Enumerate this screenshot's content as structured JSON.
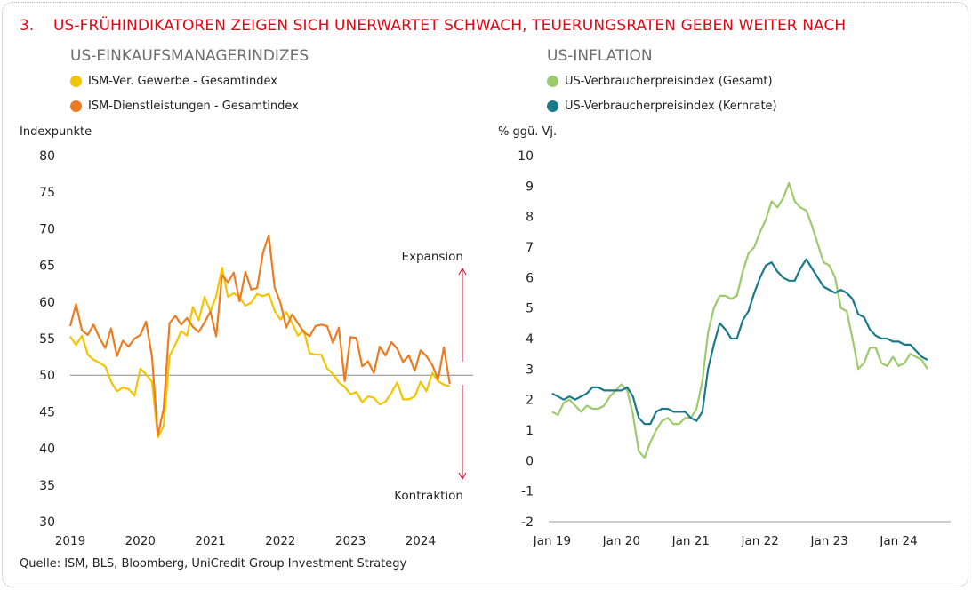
{
  "title": {
    "number": "3.",
    "text": "US-FRÜHINDIKATOREN ZEIGEN SICH UNERWARTET SCHWACH, TEUERUNGSRATEN GEBEN WEITER NACH"
  },
  "source": "Quelle: ISM, BLS, Bloomberg, UniCredit Group Investment Strategy",
  "colors": {
    "title": "#e30613",
    "yellow": "#f5c400",
    "orange": "#ec7c1f",
    "lightgreen": "#9ccb6b",
    "teal": "#1a7a8a",
    "arrow": "#c8102e"
  },
  "chart_data": [
    {
      "type": "line",
      "title": "US-EINKAUFSMANAGERINDIZES",
      "ylabel": "Indexpunkte",
      "xlabel": "",
      "ylim": [
        30,
        80
      ],
      "yticks": [
        30,
        35,
        40,
        45,
        50,
        55,
        60,
        65,
        70,
        75,
        80
      ],
      "xticks": [
        "2019",
        "2020",
        "2021",
        "2022",
        "2023",
        "2024"
      ],
      "xtick_dates": [
        2019.0,
        2020.0,
        2021.0,
        2022.0,
        2023.0,
        2024.0
      ],
      "reference_line": 50,
      "annotations": {
        "up": "Expansion",
        "down": "Kontraktion"
      },
      "legend_position": "top-left",
      "series": [
        {
          "name": "ISM-Ver. Gewerbe - Gesamtindex",
          "color": "#f5c400",
          "x": [
            2019.0,
            2019.083,
            2019.167,
            2019.25,
            2019.333,
            2019.417,
            2019.5,
            2019.583,
            2019.667,
            2019.75,
            2019.833,
            2019.917,
            2020.0,
            2020.083,
            2020.167,
            2020.25,
            2020.333,
            2020.417,
            2020.5,
            2020.583,
            2020.667,
            2020.75,
            2020.833,
            2020.917,
            2021.0,
            2021.083,
            2021.167,
            2021.25,
            2021.333,
            2021.417,
            2021.5,
            2021.583,
            2021.667,
            2021.75,
            2021.833,
            2021.917,
            2022.0,
            2022.083,
            2022.167,
            2022.25,
            2022.333,
            2022.417,
            2022.5,
            2022.583,
            2022.667,
            2022.75,
            2022.833,
            2022.917,
            2023.0,
            2023.083,
            2023.167,
            2023.25,
            2023.333,
            2023.417,
            2023.5,
            2023.583,
            2023.667,
            2023.75,
            2023.833,
            2023.917,
            2024.0,
            2024.083,
            2024.167,
            2024.25,
            2024.333,
            2024.417
          ],
          "values": [
            55.3,
            54.1,
            55.4,
            52.8,
            52.1,
            51.7,
            51.2,
            49.1,
            47.8,
            48.3,
            48.1,
            47.2,
            50.9,
            50.1,
            49.1,
            41.5,
            43.1,
            52.6,
            54.2,
            56.0,
            55.4,
            59.3,
            57.5,
            60.7,
            58.7,
            60.8,
            64.7,
            60.7,
            61.2,
            60.6,
            59.5,
            59.9,
            61.1,
            60.8,
            61.1,
            58.8,
            57.6,
            58.6,
            57.1,
            55.4,
            56.1,
            53.0,
            52.8,
            52.8,
            50.9,
            50.2,
            49.0,
            48.4,
            47.4,
            47.7,
            46.3,
            47.1,
            46.9,
            46.0,
            46.4,
            47.6,
            49.0,
            46.7,
            46.7,
            47.1,
            49.1,
            47.8,
            50.3,
            49.2,
            48.7,
            48.5
          ]
        },
        {
          "name": "ISM-Dienstleistungen - Gesamtindex",
          "color": "#ec7c1f",
          "x": [
            2019.0,
            2019.083,
            2019.167,
            2019.25,
            2019.333,
            2019.417,
            2019.5,
            2019.583,
            2019.667,
            2019.75,
            2019.833,
            2019.917,
            2020.0,
            2020.083,
            2020.167,
            2020.25,
            2020.333,
            2020.417,
            2020.5,
            2020.583,
            2020.667,
            2020.75,
            2020.833,
            2020.917,
            2021.0,
            2021.083,
            2021.167,
            2021.25,
            2021.333,
            2021.417,
            2021.5,
            2021.583,
            2021.667,
            2021.75,
            2021.833,
            2021.917,
            2022.0,
            2022.083,
            2022.167,
            2022.25,
            2022.333,
            2022.417,
            2022.5,
            2022.583,
            2022.667,
            2022.75,
            2022.833,
            2022.917,
            2023.0,
            2023.083,
            2023.167,
            2023.25,
            2023.333,
            2023.417,
            2023.5,
            2023.583,
            2023.667,
            2023.75,
            2023.833,
            2023.917,
            2024.0,
            2024.083,
            2024.167,
            2024.25,
            2024.333,
            2024.417
          ],
          "values": [
            56.7,
            59.7,
            56.1,
            55.5,
            56.9,
            55.1,
            53.7,
            56.4,
            52.6,
            54.7,
            53.9,
            55.0,
            55.5,
            57.3,
            52.5,
            41.8,
            45.4,
            57.1,
            58.1,
            56.9,
            57.8,
            56.6,
            55.9,
            57.2,
            58.7,
            55.3,
            63.7,
            62.7,
            64.0,
            60.1,
            64.1,
            61.7,
            61.9,
            66.7,
            69.1,
            62.0,
            59.9,
            56.5,
            58.3,
            57.1,
            55.9,
            55.3,
            56.7,
            56.9,
            56.7,
            54.4,
            56.5,
            49.2,
            55.2,
            55.1,
            51.2,
            51.9,
            50.3,
            53.9,
            52.7,
            54.5,
            53.6,
            51.8,
            52.7,
            50.6,
            53.4,
            52.6,
            51.4,
            49.4,
            53.8,
            48.8
          ]
        }
      ]
    },
    {
      "type": "line",
      "title": "US-INFLATION",
      "ylabel": "% ggü. Vj.",
      "xlabel": "",
      "ylim": [
        -2,
        10
      ],
      "yticks": [
        -2,
        -1,
        0,
        1,
        2,
        3,
        4,
        5,
        6,
        7,
        8,
        9,
        10
      ],
      "xticks": [
        "Jan 19",
        "Jan 20",
        "Jan 21",
        "Jan 22",
        "Jan 23",
        "Jan 24"
      ],
      "xtick_dates": [
        2019.0,
        2020.0,
        2021.0,
        2022.0,
        2023.0,
        2024.0
      ],
      "legend_position": "top-left",
      "series": [
        {
          "name": "US-Verbraucherpreisindex (Gesamt)",
          "color": "#9ccb6b",
          "x": [
            2019.0,
            2019.083,
            2019.167,
            2019.25,
            2019.333,
            2019.417,
            2019.5,
            2019.583,
            2019.667,
            2019.75,
            2019.833,
            2019.917,
            2020.0,
            2020.083,
            2020.167,
            2020.25,
            2020.333,
            2020.417,
            2020.5,
            2020.583,
            2020.667,
            2020.75,
            2020.833,
            2020.917,
            2021.0,
            2021.083,
            2021.167,
            2021.25,
            2021.333,
            2021.417,
            2021.5,
            2021.583,
            2021.667,
            2021.75,
            2021.833,
            2021.917,
            2022.0,
            2022.083,
            2022.167,
            2022.25,
            2022.333,
            2022.417,
            2022.5,
            2022.583,
            2022.667,
            2022.75,
            2022.833,
            2022.917,
            2023.0,
            2023.083,
            2023.167,
            2023.25,
            2023.333,
            2023.417,
            2023.5,
            2023.583,
            2023.667,
            2023.75,
            2023.833,
            2023.917,
            2024.0,
            2024.083,
            2024.167,
            2024.25,
            2024.333,
            2024.417
          ],
          "values": [
            1.6,
            1.5,
            1.9,
            2.0,
            1.8,
            1.6,
            1.8,
            1.7,
            1.7,
            1.8,
            2.1,
            2.3,
            2.5,
            2.3,
            1.5,
            0.3,
            0.1,
            0.6,
            1.0,
            1.3,
            1.4,
            1.2,
            1.2,
            1.4,
            1.4,
            1.7,
            2.6,
            4.2,
            5.0,
            5.4,
            5.4,
            5.3,
            5.4,
            6.2,
            6.8,
            7.0,
            7.5,
            7.9,
            8.5,
            8.3,
            8.6,
            9.1,
            8.5,
            8.3,
            8.2,
            7.7,
            7.1,
            6.5,
            6.4,
            6.0,
            5.0,
            4.9,
            4.0,
            3.0,
            3.2,
            3.7,
            3.7,
            3.2,
            3.1,
            3.4,
            3.1,
            3.2,
            3.5,
            3.4,
            3.3,
            3.0
          ]
        },
        {
          "name": "US-Verbraucherpreisindex (Kernrate)",
          "color": "#1a7a8a",
          "x": [
            2019.0,
            2019.083,
            2019.167,
            2019.25,
            2019.333,
            2019.417,
            2019.5,
            2019.583,
            2019.667,
            2019.75,
            2019.833,
            2019.917,
            2020.0,
            2020.083,
            2020.167,
            2020.25,
            2020.333,
            2020.417,
            2020.5,
            2020.583,
            2020.667,
            2020.75,
            2020.833,
            2020.917,
            2021.0,
            2021.083,
            2021.167,
            2021.25,
            2021.333,
            2021.417,
            2021.5,
            2021.583,
            2021.667,
            2021.75,
            2021.833,
            2021.917,
            2022.0,
            2022.083,
            2022.167,
            2022.25,
            2022.333,
            2022.417,
            2022.5,
            2022.583,
            2022.667,
            2022.75,
            2022.833,
            2022.917,
            2023.0,
            2023.083,
            2023.167,
            2023.25,
            2023.333,
            2023.417,
            2023.5,
            2023.583,
            2023.667,
            2023.75,
            2023.833,
            2023.917,
            2024.0,
            2024.083,
            2024.167,
            2024.25,
            2024.333,
            2024.417
          ],
          "values": [
            2.2,
            2.1,
            2.0,
            2.1,
            2.0,
            2.1,
            2.2,
            2.4,
            2.4,
            2.3,
            2.3,
            2.3,
            2.3,
            2.4,
            2.1,
            1.4,
            1.2,
            1.2,
            1.6,
            1.7,
            1.7,
            1.6,
            1.6,
            1.6,
            1.4,
            1.3,
            1.6,
            3.0,
            3.8,
            4.5,
            4.3,
            4.0,
            4.0,
            4.6,
            4.9,
            5.5,
            6.0,
            6.4,
            6.5,
            6.2,
            6.0,
            5.9,
            5.9,
            6.3,
            6.6,
            6.3,
            6.0,
            5.7,
            5.6,
            5.5,
            5.6,
            5.5,
            5.3,
            4.8,
            4.7,
            4.3,
            4.1,
            4.0,
            4.0,
            3.9,
            3.9,
            3.8,
            3.8,
            3.6,
            3.4,
            3.3
          ]
        }
      ]
    }
  ]
}
